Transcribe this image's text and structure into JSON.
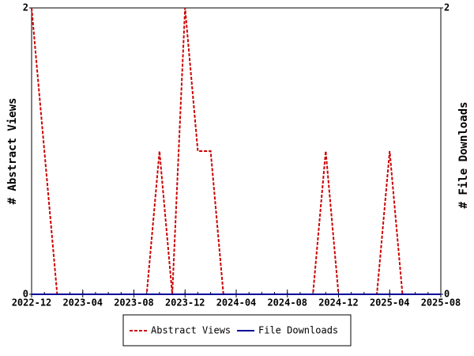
{
  "chart_data": {
    "type": "line",
    "x": [
      "2022-12",
      "2023-01",
      "2023-02",
      "2023-03",
      "2023-04",
      "2023-05",
      "2023-06",
      "2023-07",
      "2023-08",
      "2023-09",
      "2023-10",
      "2023-11",
      "2023-12",
      "2024-01",
      "2024-02",
      "2024-03",
      "2024-04",
      "2024-05",
      "2024-06",
      "2024-07",
      "2024-08",
      "2024-09",
      "2024-10",
      "2024-11",
      "2024-12",
      "2025-01",
      "2025-02",
      "2025-03",
      "2025-04",
      "2025-05",
      "2025-06",
      "2025-07",
      "2025-08"
    ],
    "xticks": [
      "2022-12",
      "2023-04",
      "2023-08",
      "2023-12",
      "2024-04",
      "2024-08",
      "2024-12",
      "2025-04",
      "2025-08"
    ],
    "ylabel": "# Abstract Views",
    "y2label": "# File Downloads",
    "ylim": [
      0,
      2
    ],
    "yticks": [
      0,
      2
    ],
    "y2lim": [
      0,
      2
    ],
    "y2ticks": [
      0,
      2
    ],
    "legend": "bottom",
    "series": [
      {
        "name": "Abstract Views",
        "color": "#cc0000",
        "dash": true,
        "values": [
          2,
          1,
          0,
          0,
          0,
          0,
          0,
          0,
          0,
          0,
          1,
          0,
          2,
          1,
          1,
          0,
          0,
          0,
          0,
          0,
          0,
          0,
          0,
          1,
          0,
          0,
          0,
          0,
          1,
          0,
          0,
          0,
          0
        ]
      },
      {
        "name": "File Downloads",
        "color": "#000099",
        "axis": "y2",
        "values": [
          0,
          0,
          0,
          0,
          0,
          0,
          0,
          0,
          0,
          0,
          0,
          0,
          0,
          0,
          0,
          0,
          0,
          0,
          0,
          0,
          0,
          0,
          0,
          0,
          0,
          0,
          0,
          0,
          0,
          0,
          0,
          0,
          0
        ]
      }
    ]
  }
}
